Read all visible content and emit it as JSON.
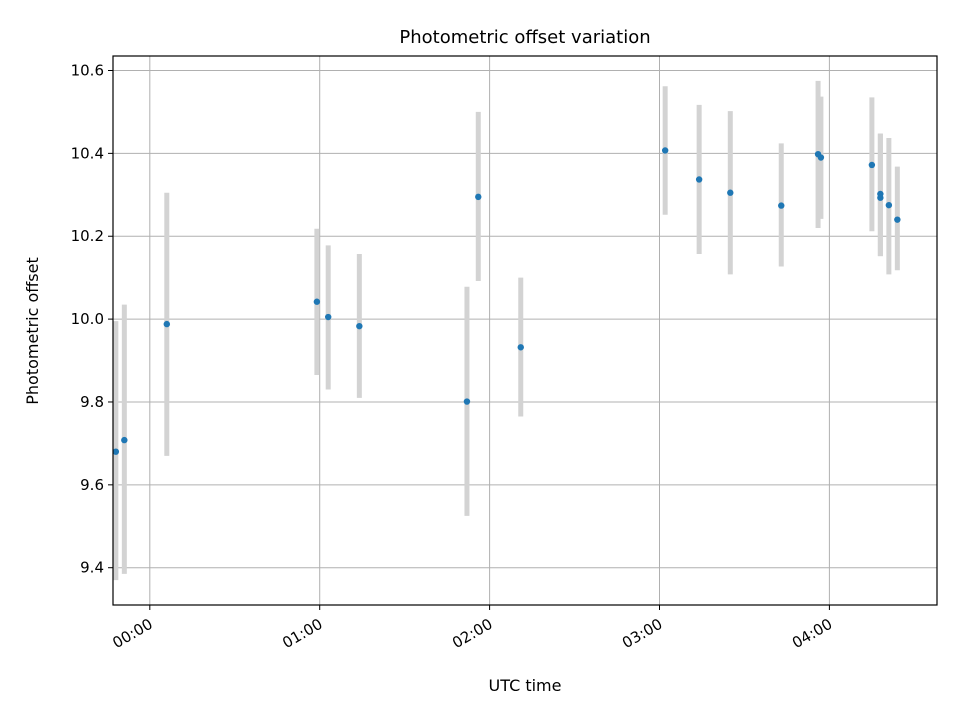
{
  "chart_data": {
    "type": "scatter",
    "title": "Photometric offset variation",
    "xlabel": "UTC time",
    "ylabel": "Photometric offset",
    "x_unit": "HH:MM",
    "xlim": [
      "-00:13",
      "04:38"
    ],
    "ylim": [
      9.31,
      10.635
    ],
    "xticks": [
      "00:00",
      "01:00",
      "02:00",
      "03:00",
      "04:00"
    ],
    "yticks": [
      9.4,
      9.6,
      9.8,
      10.0,
      10.2,
      10.4,
      10.6
    ],
    "ytick_labels": [
      "9.4",
      "9.6",
      "9.8",
      "10.0",
      "10.2",
      "10.4",
      "10.6"
    ],
    "grid": true,
    "colors": {
      "point": "#1f77b4",
      "errorbar": "#d3d3d3"
    },
    "series": [
      {
        "points": [
          {
            "x": "23:48",
            "y": 9.68,
            "ylo": 9.37,
            "yhi": 9.995
          },
          {
            "x": "23:51",
            "y": 9.708,
            "ylo": 9.385,
            "yhi": 10.035
          },
          {
            "x": "00:06",
            "y": 9.988,
            "ylo": 9.67,
            "yhi": 10.305
          },
          {
            "x": "00:59",
            "y": 10.042,
            "ylo": 9.865,
            "yhi": 10.218
          },
          {
            "x": "01:03",
            "y": 10.005,
            "ylo": 9.83,
            "yhi": 10.178
          },
          {
            "x": "01:14",
            "y": 9.983,
            "ylo": 9.81,
            "yhi": 10.157
          },
          {
            "x": "01:52",
            "y": 9.801,
            "ylo": 9.525,
            "yhi": 10.078
          },
          {
            "x": "01:56",
            "y": 10.295,
            "ylo": 10.092,
            "yhi": 10.5
          },
          {
            "x": "02:11",
            "y": 9.932,
            "ylo": 9.765,
            "yhi": 10.1
          },
          {
            "x": "03:02",
            "y": 10.407,
            "ylo": 10.252,
            "yhi": 10.562
          },
          {
            "x": "03:14",
            "y": 10.337,
            "ylo": 10.157,
            "yhi": 10.517
          },
          {
            "x": "03:25",
            "y": 10.305,
            "ylo": 10.108,
            "yhi": 10.502
          },
          {
            "x": "03:43",
            "y": 10.274,
            "ylo": 10.127,
            "yhi": 10.424
          },
          {
            "x": "03:56",
            "y": 10.398,
            "ylo": 10.22,
            "yhi": 10.575
          },
          {
            "x": "03:57",
            "y": 10.39,
            "ylo": 10.242,
            "yhi": 10.537
          },
          {
            "x": "04:15",
            "y": 10.372,
            "ylo": 10.212,
            "yhi": 10.535
          },
          {
            "x": "04:18",
            "y": 10.302,
            "ylo": 10.152,
            "yhi": 10.448
          },
          {
            "x": "04:18",
            "y": 10.293,
            "ylo": 10.152,
            "yhi": 10.447
          },
          {
            "x": "04:21",
            "y": 10.275,
            "ylo": 10.108,
            "yhi": 10.437
          },
          {
            "x": "04:24",
            "y": 10.24,
            "ylo": 10.118,
            "yhi": 10.368
          }
        ]
      }
    ]
  }
}
